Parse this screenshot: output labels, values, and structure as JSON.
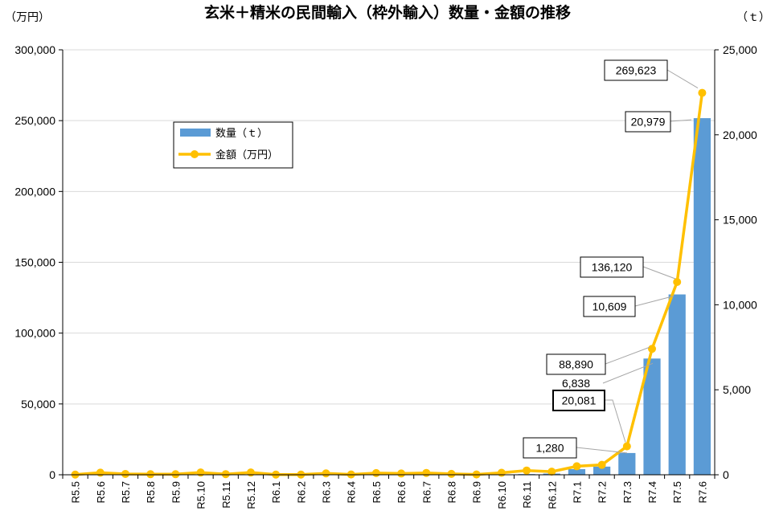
{
  "chart_data": {
    "type": "bar",
    "title": "玄米＋精米の民間輸入（枠外輸入）数量・金額の推移",
    "left_unit": "（万円）",
    "right_unit": "（ｔ）",
    "categories": [
      "R5.5",
      "R5.6",
      "R5.7",
      "R5.8",
      "R5.9",
      "R5.10",
      "R5.11",
      "R5.12",
      "R6.1",
      "R6.2",
      "R6.3",
      "R6.4",
      "R6.5",
      "R6.6",
      "R6.7",
      "R6.8",
      "R6.9",
      "R6.10",
      "R6.11",
      "R6.12",
      "R7.1",
      "R7.2",
      "R7.3",
      "R7.4",
      "R7.5",
      "R7.6"
    ],
    "series": [
      {
        "name": "数量（ｔ）",
        "type": "bar",
        "axis": "right",
        "color": "#5b9bd5",
        "values": [
          5,
          8,
          6,
          5,
          5,
          8,
          6,
          8,
          5,
          5,
          6,
          5,
          8,
          6,
          8,
          6,
          5,
          20,
          40,
          70,
          330,
          480,
          1280,
          6838,
          10609,
          20979
        ]
      },
      {
        "name": "金額（万円）",
        "type": "line",
        "axis": "left",
        "color": "#ffc000",
        "values": [
          150,
          1500,
          600,
          400,
          400,
          1600,
          450,
          1600,
          150,
          150,
          1000,
          200,
          1200,
          900,
          1300,
          650,
          200,
          1400,
          3000,
          2200,
          6000,
          7000,
          20081,
          88890,
          136120,
          269623
        ]
      }
    ],
    "y_left": {
      "min": 0,
      "max": 300000,
      "ticks": [
        "0",
        "50,000",
        "100,000",
        "150,000",
        "200,000",
        "250,000",
        "300,000"
      ]
    },
    "y_right": {
      "min": 0,
      "max": 25000,
      "ticks": [
        "0",
        "5,000",
        "10,000",
        "15,000",
        "20,000",
        "25,000"
      ]
    },
    "data_labels": [
      {
        "text": "269,623",
        "category": "R7.6",
        "series": "金額（万円）"
      },
      {
        "text": "20,979",
        "category": "R7.6",
        "series": "数量（ｔ）"
      },
      {
        "text": "136,120",
        "category": "R7.5",
        "series": "金額（万円）"
      },
      {
        "text": "10,609",
        "category": "R7.5",
        "series": "数量（ｔ）"
      },
      {
        "text": "88,890",
        "category": "R7.4",
        "series": "金額（万円）"
      },
      {
        "text": "6,838",
        "category": "R7.4",
        "series": "数量（ｔ）"
      },
      {
        "text": "20,081",
        "category": "R7.3",
        "series": "金額（万円）"
      },
      {
        "text": "1,280",
        "category": "R7.3",
        "series": "数量（ｔ）"
      }
    ],
    "legend": {
      "position": "upper-left inside plot",
      "items": [
        "数量（ｔ）",
        "金額（万円）"
      ]
    },
    "grid": "horizontal"
  }
}
